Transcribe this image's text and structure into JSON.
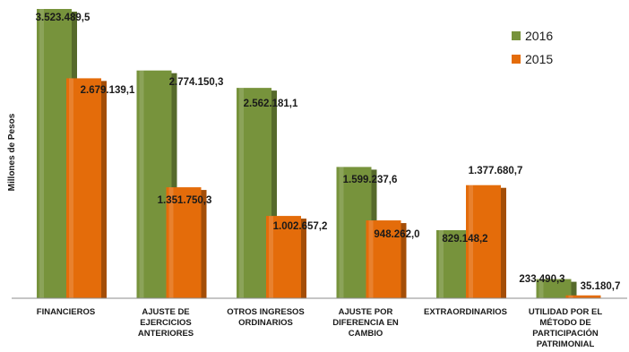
{
  "chart_data": {
    "type": "bar",
    "title": "",
    "xlabel": "",
    "ylabel": "Millones de Pesos",
    "ylim": [
      0,
      3600000
    ],
    "grid": false,
    "legend_position": "top-right",
    "categories": [
      [
        "FINANCIEROS"
      ],
      [
        "AJUSTE DE",
        "EJERCICIOS",
        "ANTERIORES"
      ],
      [
        "OTROS INGRESOS",
        "ORDINARIOS"
      ],
      [
        "AJUSTE POR",
        "DIFERENCIA EN",
        "CAMBIO"
      ],
      [
        "EXTRAORDINARIOS"
      ],
      [
        "UTILIDAD POR EL",
        "MÉTODO DE",
        "PARTICIPACIÓN",
        "PATRIMONIAL"
      ]
    ],
    "series": [
      {
        "name": "2016",
        "color": "#77933c",
        "values": [
          3523489.5,
          2774150.3,
          2562181.1,
          1599237.6,
          829148.2,
          233490.3
        ],
        "labels": [
          "3.523.489,5",
          "2.774.150,3",
          "2.562.181,1",
          "1.599.237,6",
          "829.148,2",
          "233.490,3"
        ]
      },
      {
        "name": "2015",
        "color": "#e46c0a",
        "values": [
          2679139.1,
          1351750.3,
          1002657.2,
          948262.0,
          1377680.7,
          35180.7
        ],
        "labels": [
          "2.679.139,1",
          "1.351.750,3",
          "1.002.657,2",
          "948.262,0",
          "1.377.680,7",
          "35.180,7"
        ]
      }
    ]
  }
}
